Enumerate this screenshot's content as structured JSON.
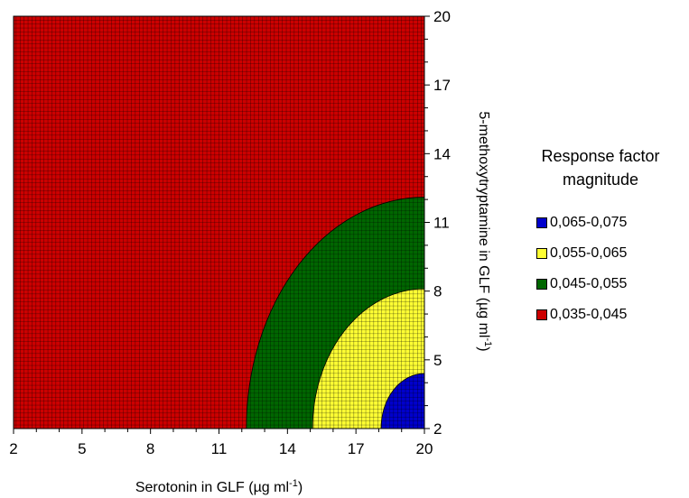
{
  "chart_data": {
    "type": "contour",
    "xlabel": "Serotonin in GLF (µg ml",
    "xlabel_sup": "-1",
    "xlabel_end": ")",
    "ylabel": "5-methoxytryptamine in GLF (µg ml",
    "ylabel_sup": "-1",
    "ylabel_end": ")",
    "xlim": [
      2,
      20
    ],
    "ylim": [
      2,
      20
    ],
    "x_ticks": [
      2,
      5,
      8,
      11,
      14,
      17,
      20
    ],
    "y_ticks": [
      2,
      5,
      8,
      11,
      14,
      17,
      20
    ],
    "legend_title_line1": "Response factor",
    "legend_title_line2": "magnitude",
    "bands": [
      {
        "label": "0,065-0,075",
        "color": "#0000cc"
      },
      {
        "label": "0,055-0,065",
        "color": "#ffff33"
      },
      {
        "label": "0,045-0,055",
        "color": "#006600"
      },
      {
        "label": "0,035-0,045",
        "color": "#cc0000"
      }
    ],
    "boundaries": [
      {
        "between": "0,035-0,045 / 0,045-0,055",
        "x_at_ymin": 12.2,
        "y_at_xmax": 12.1
      },
      {
        "between": "0,045-0,055 / 0,055-0,065",
        "x_at_ymin": 15.1,
        "y_at_xmax": 8.1
      },
      {
        "between": "0,055-0,065 / 0,065-0,075",
        "x_at_ymin": 18.1,
        "y_at_xmax": 4.4
      }
    ]
  }
}
